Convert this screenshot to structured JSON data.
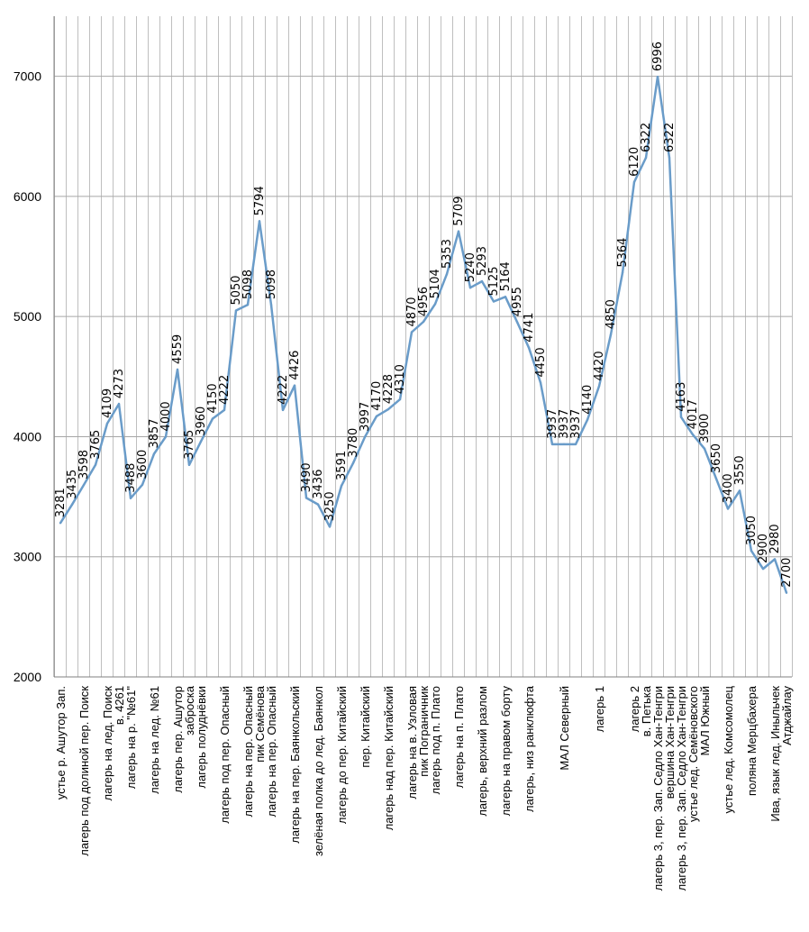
{
  "chart_data": {
    "type": "line",
    "title": "",
    "xlabel": "",
    "ylabel": "",
    "ylim": [
      2000,
      7500
    ],
    "yticks": [
      2000,
      3000,
      4000,
      5000,
      6000,
      7000
    ],
    "grid": true,
    "legend": "none",
    "line_color": "#6A9CC9",
    "grid_color": "#BFBFBF",
    "points": [
      {
        "label": "устье р. Ашутор Зап.",
        "value": 3281
      },
      {
        "label": "",
        "value": 3435
      },
      {
        "label": "лагерь под долиной пер. Поиск",
        "value": 3598
      },
      {
        "label": "",
        "value": 3765
      },
      {
        "label": "лагерь на лед. Поиск",
        "value": 4109
      },
      {
        "label": "в. 4261",
        "value": 4273
      },
      {
        "label": "лагерь на р. \"№61\"",
        "value": 3488
      },
      {
        "label": "",
        "value": 3600
      },
      {
        "label": "лагерь на лед. №61",
        "value": 3857
      },
      {
        "label": "",
        "value": 4000
      },
      {
        "label": "лагерь пер. Ашутор",
        "value": 4559
      },
      {
        "label": "заброска",
        "value": 3765
      },
      {
        "label": "лагерь полуднёвки",
        "value": 3960
      },
      {
        "label": "",
        "value": 4150
      },
      {
        "label": "лагерь под пер. Опасный",
        "value": 4222
      },
      {
        "label": "",
        "value": 5050
      },
      {
        "label": "лагерь на пер. Опасный",
        "value": 5098
      },
      {
        "label": "пик Семёнова",
        "value": 5794
      },
      {
        "label": "лагерь на пер. Опасный",
        "value": 5098
      },
      {
        "label": "",
        "value": 4222
      },
      {
        "label": "лагерь на пер. Баянкольский",
        "value": 4426
      },
      {
        "label": "",
        "value": 3490
      },
      {
        "label": "зелёная полка до лед. Баянкол",
        "value": 3436
      },
      {
        "label": "",
        "value": 3250
      },
      {
        "label": "лагерь до пер. Китайский",
        "value": 3591
      },
      {
        "label": "",
        "value": 3780
      },
      {
        "label": "пер. Китайский",
        "value": 3997
      },
      {
        "label": "",
        "value": 4170
      },
      {
        "label": "лагерь над пер. Китайский",
        "value": 4228
      },
      {
        "label": "",
        "value": 4310
      },
      {
        "label": "лагерь на в. Узловая",
        "value": 4870
      },
      {
        "label": "пик Пограничник",
        "value": 4956
      },
      {
        "label": "лагерь под п. Плато",
        "value": 5104
      },
      {
        "label": "",
        "value": 5353
      },
      {
        "label": "лагерь на п. Плато",
        "value": 5709
      },
      {
        "label": "",
        "value": 5240
      },
      {
        "label": "лагерь, верхний разлом",
        "value": 5293
      },
      {
        "label": "",
        "value": 5125
      },
      {
        "label": "лагерь на правом борту",
        "value": 5164
      },
      {
        "label": "",
        "value": 4955
      },
      {
        "label": "лагерь, низ ранклюфта",
        "value": 4741
      },
      {
        "label": "",
        "value": 4450
      },
      {
        "label": "",
        "value": 3937
      },
      {
        "label": "МАЛ Северный",
        "value": 3937
      },
      {
        "label": "",
        "value": 3937
      },
      {
        "label": "",
        "value": 4140
      },
      {
        "label": "лагерь 1",
        "value": 4420
      },
      {
        "label": "",
        "value": 4850
      },
      {
        "label": "",
        "value": 5364
      },
      {
        "label": "лагерь 2",
        "value": 6120
      },
      {
        "label": "в. Петька",
        "value": 6322
      },
      {
        "label": "лагерь 3, пер. Зап. Седло Хан-Тенгри",
        "value": 6996
      },
      {
        "label": "вершина Хан-Тенгри",
        "value": 6322
      },
      {
        "label": "лагерь 3, пер. Зап. Седло Хан-Тенгри",
        "value": 4163
      },
      {
        "label": "устье лед. Семёновского",
        "value": 4017
      },
      {
        "label": "МАЛ Южный",
        "value": 3900
      },
      {
        "label": "",
        "value": 3650
      },
      {
        "label": "устье лед. Комсомолец",
        "value": 3400
      },
      {
        "label": "",
        "value": 3550
      },
      {
        "label": "поляна Мерцбахера",
        "value": 3050
      },
      {
        "label": "",
        "value": 2900
      },
      {
        "label": "Ива, язык лед. Иныльчек",
        "value": 2980
      },
      {
        "label": "Атджайлау",
        "value": 2700
      }
    ]
  }
}
